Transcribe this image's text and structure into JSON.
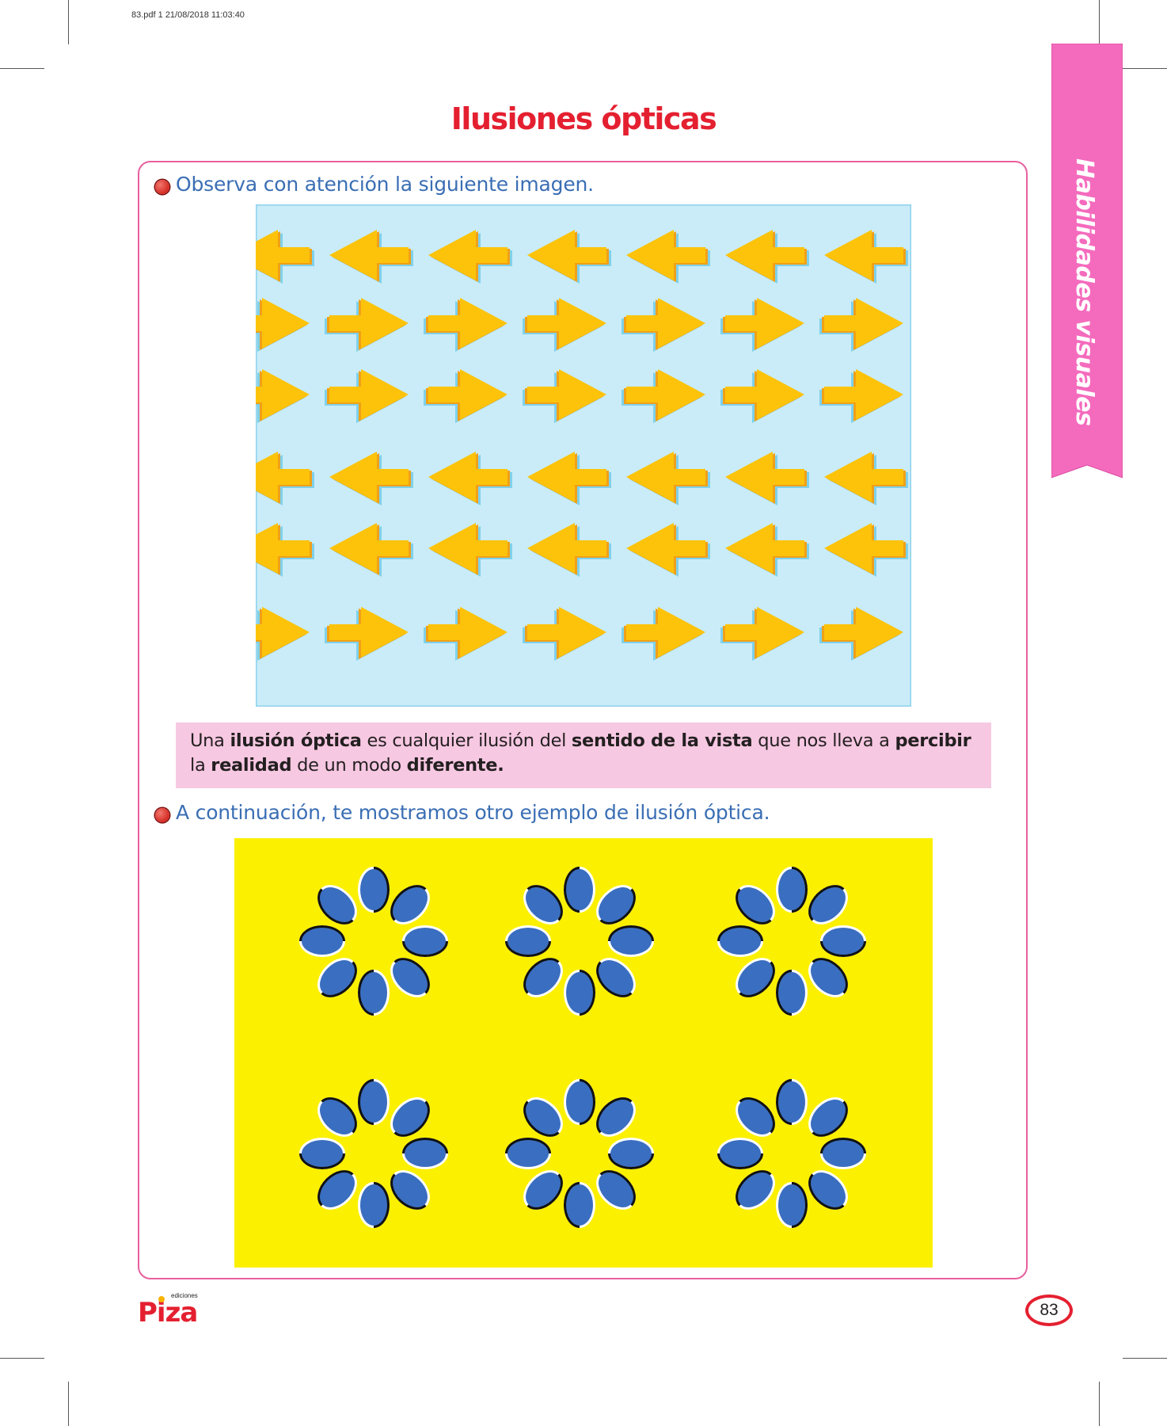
{
  "print_stamp": "83.pdf   1   21/08/2018   11:03:40",
  "title": "Ilusiones ópticas",
  "side_tab": "Habilidades visuales",
  "instruction_1": "Observa con atención la siguiente imagen.",
  "definition": {
    "p1": "Una ",
    "b1": "ilusión óptica",
    "p2": " es cualquier ilusión del ",
    "b2": "sentido de la vista",
    "p3": " que nos lleva a ",
    "b3": "percibir",
    "p4": "la ",
    "b4": "realidad",
    "p5": " de un modo ",
    "b5": "diferente."
  },
  "instruction_2": "A continuación, te mostramos otro ejemplo de ilusión óptica.",
  "arrow_rows": [
    "left",
    "right",
    "right",
    "left",
    "left",
    "right"
  ],
  "arrows_per_row": 7,
  "flower_grid": {
    "rows": 2,
    "cols": 3,
    "petals": 8
  },
  "logo": {
    "small": "ediciones",
    "main": "Piza"
  },
  "page_number": "83",
  "colors": {
    "title": "#e42030",
    "instruction": "#3a6eb4",
    "frame": "#e8609e",
    "side_tab": "#f46bbd",
    "definition_bg": "#f7c8e2",
    "arrows_bg": "#c9ecf8",
    "arrow": "#fcc30a",
    "arrow_shadow": "#7fd1ea",
    "ellipses_bg": "#fbf000",
    "ellipse": "#3a6ec0"
  }
}
